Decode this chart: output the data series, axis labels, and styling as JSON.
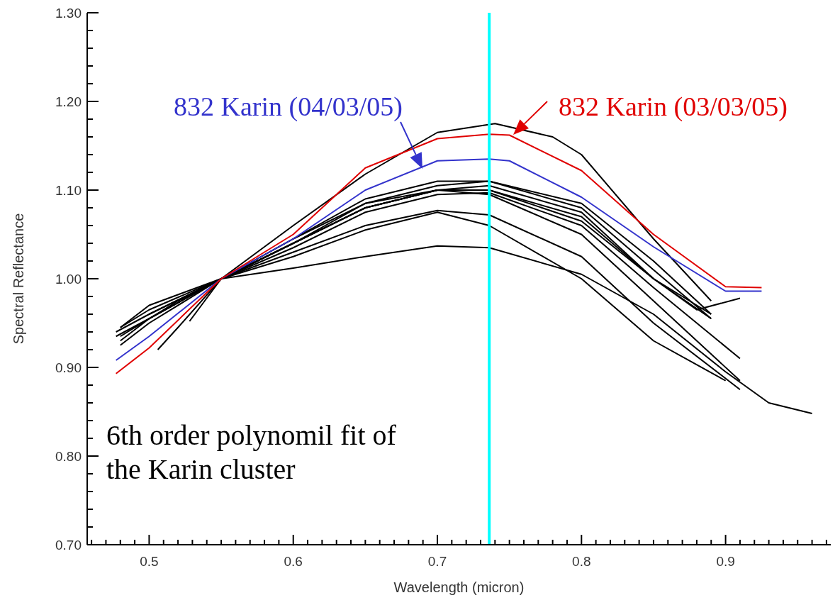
{
  "chart_data": {
    "type": "line",
    "xlabel": "Wavelength (micron)",
    "ylabel": "Spectral Reflectance",
    "xlim": [
      0.457,
      0.973
    ],
    "ylim": [
      0.7,
      1.3
    ],
    "xticks": [
      {
        "value": 0.46,
        "label": null
      },
      {
        "value": 0.47,
        "label": null
      },
      {
        "value": 0.48,
        "label": null
      },
      {
        "value": 0.49,
        "label": null
      },
      0.5,
      {
        "value": 0.51,
        "label": null
      },
      {
        "value": 0.52,
        "label": null
      },
      {
        "value": 0.53,
        "label": null
      },
      {
        "value": 0.54,
        "label": null
      },
      {
        "value": 0.55,
        "label": null
      },
      {
        "value": 0.56,
        "label": null
      },
      {
        "value": 0.57,
        "label": null
      },
      {
        "value": 0.58,
        "label": null
      },
      {
        "value": 0.59,
        "label": null
      },
      0.6,
      {
        "value": 0.61,
        "label": null
      },
      {
        "value": 0.62,
        "label": null
      },
      {
        "value": 0.63,
        "label": null
      },
      {
        "value": 0.64,
        "label": null
      },
      {
        "value": 0.65,
        "label": null
      },
      {
        "value": 0.66,
        "label": null
      },
      {
        "value": 0.67,
        "label": null
      },
      {
        "value": 0.68,
        "label": null
      },
      {
        "value": 0.69,
        "label": null
      },
      0.7,
      {
        "value": 0.71,
        "label": null
      },
      {
        "value": 0.72,
        "label": null
      },
      {
        "value": 0.73,
        "label": null
      },
      {
        "value": 0.74,
        "label": null
      },
      {
        "value": 0.75,
        "label": null
      },
      {
        "value": 0.76,
        "label": null
      },
      {
        "value": 0.77,
        "label": null
      },
      {
        "value": 0.78,
        "label": null
      },
      {
        "value": 0.79,
        "label": null
      },
      0.8,
      {
        "value": 0.81,
        "label": null
      },
      {
        "value": 0.82,
        "label": null
      },
      {
        "value": 0.83,
        "label": null
      },
      {
        "value": 0.84,
        "label": null
      },
      {
        "value": 0.85,
        "label": null
      },
      {
        "value": 0.86,
        "label": null
      },
      {
        "value": 0.87,
        "label": null
      },
      {
        "value": 0.88,
        "label": null
      },
      {
        "value": 0.89,
        "label": null
      },
      0.9,
      {
        "value": 0.91,
        "label": null
      },
      {
        "value": 0.92,
        "label": null
      },
      {
        "value": 0.93,
        "label": null
      },
      {
        "value": 0.94,
        "label": null
      },
      {
        "value": 0.95,
        "label": null
      },
      {
        "value": 0.96,
        "label": null
      },
      {
        "value": 0.97,
        "label": null
      }
    ],
    "yticks": [
      {
        "value": 0.7,
        "label": "0.70"
      },
      {
        "value": 0.72,
        "label": null
      },
      {
        "value": 0.74,
        "label": null
      },
      {
        "value": 0.76,
        "label": null
      },
      {
        "value": 0.78,
        "label": null
      },
      {
        "value": 0.8,
        "label": "0.80"
      },
      {
        "value": 0.82,
        "label": null
      },
      {
        "value": 0.84,
        "label": null
      },
      {
        "value": 0.86,
        "label": null
      },
      {
        "value": 0.88,
        "label": null
      },
      {
        "value": 0.9,
        "label": "0.90"
      },
      {
        "value": 0.92,
        "label": null
      },
      {
        "value": 0.94,
        "label": null
      },
      {
        "value": 0.96,
        "label": null
      },
      {
        "value": 0.98,
        "label": null
      },
      {
        "value": 1.0,
        "label": "1.00"
      },
      {
        "value": 1.02,
        "label": null
      },
      {
        "value": 1.04,
        "label": null
      },
      {
        "value": 1.06,
        "label": null
      },
      {
        "value": 1.08,
        "label": null
      },
      {
        "value": 1.1,
        "label": "1.10"
      },
      {
        "value": 1.12,
        "label": null
      },
      {
        "value": 1.14,
        "label": null
      },
      {
        "value": 1.16,
        "label": null
      },
      {
        "value": 1.18,
        "label": null
      },
      {
        "value": 1.2,
        "label": "1.20"
      },
      {
        "value": 1.22,
        "label": null
      },
      {
        "value": 1.24,
        "label": null
      },
      {
        "value": 1.26,
        "label": null
      },
      {
        "value": 1.28,
        "label": null
      },
      {
        "value": 1.3,
        "label": "1.30"
      }
    ],
    "grid": false,
    "marker": "none",
    "line_style": "solid",
    "ref_lines": [
      {
        "axis": "x",
        "value": 0.736,
        "color": "#00ffff"
      }
    ],
    "annotations": [
      "6th order polynomil fit of the Karin cluster"
    ],
    "series": [
      {
        "color": "#000000",
        "x": [
          0.49,
          0.5,
          0.52,
          0.55,
          0.6,
          0.65,
          0.7,
          0.74,
          0.78,
          0.8,
          0.85,
          0.89
        ],
        "values": [
          0.945,
          0.955,
          0.975,
          1.0,
          1.06,
          1.118,
          1.165,
          1.175,
          1.16,
          1.14,
          1.045,
          0.975
        ]
      },
      {
        "color": "#000000",
        "x": [
          0.477,
          0.5,
          0.55,
          0.6,
          0.65,
          0.7,
          0.736,
          0.8,
          0.85,
          0.89
        ],
        "values": [
          0.94,
          0.96,
          1.0,
          1.04,
          1.085,
          1.105,
          1.11,
          1.085,
          1.02,
          0.96
        ]
      },
      {
        "color": "#000000",
        "x": [
          0.477,
          0.5,
          0.55,
          0.6,
          0.65,
          0.7,
          0.736,
          0.8,
          0.85,
          0.89
        ],
        "values": [
          0.935,
          0.955,
          1.0,
          1.04,
          1.08,
          1.1,
          1.1,
          1.07,
          1.0,
          0.955
        ]
      },
      {
        "color": "#000000",
        "x": [
          0.48,
          0.5,
          0.55,
          0.6,
          0.65,
          0.7,
          0.736,
          0.8,
          0.85,
          0.91
        ],
        "values": [
          0.93,
          0.955,
          1.0,
          1.035,
          1.075,
          1.095,
          1.097,
          1.06,
          0.99,
          0.91
        ]
      },
      {
        "color": "#000000",
        "x": [
          0.48,
          0.5,
          0.55,
          0.6,
          0.65,
          0.7,
          0.736,
          0.8,
          0.85,
          0.91
        ],
        "values": [
          0.945,
          0.965,
          1.0,
          1.04,
          1.08,
          1.1,
          1.095,
          1.05,
          0.975,
          0.885
        ]
      },
      {
        "color": "#000000",
        "x": [
          0.48,
          0.5,
          0.55,
          0.6,
          0.65,
          0.7,
          0.736,
          0.8,
          0.85,
          0.91
        ],
        "values": [
          0.925,
          0.95,
          1.0,
          1.03,
          1.06,
          1.077,
          1.072,
          1.025,
          0.95,
          0.875
        ]
      },
      {
        "color": "#000000",
        "x": [
          0.48,
          0.5,
          0.55,
          0.6,
          0.65,
          0.7,
          0.736,
          0.8,
          0.85,
          0.9
        ],
        "values": [
          0.935,
          0.955,
          1.0,
          1.025,
          1.055,
          1.075,
          1.06,
          1.0,
          0.93,
          0.885
        ]
      },
      {
        "color": "#000000",
        "x": [
          0.48,
          0.5,
          0.55,
          0.6,
          0.65,
          0.7,
          0.736,
          0.8,
          0.85,
          0.9,
          0.93,
          0.96
        ],
        "values": [
          0.945,
          0.97,
          1.0,
          1.012,
          1.025,
          1.037,
          1.035,
          1.005,
          0.96,
          0.895,
          0.86,
          0.848
        ]
      },
      {
        "color": "#000000",
        "x": [
          0.5,
          0.55,
          0.6,
          0.65,
          0.7,
          0.736,
          0.8,
          0.85,
          0.88,
          0.91
        ],
        "values": [
          0.96,
          1.0,
          1.04,
          1.08,
          1.1,
          1.105,
          1.075,
          1.0,
          0.965,
          0.978
        ]
      },
      {
        "color": "#000000",
        "x": [
          0.506,
          0.52,
          0.55,
          0.6,
          0.65,
          0.7,
          0.736,
          0.8,
          0.85,
          0.89
        ],
        "values": [
          0.92,
          0.945,
          1.0,
          1.045,
          1.09,
          1.11,
          1.11,
          1.08,
          1.01,
          0.955
        ]
      },
      {
        "color": "#000000",
        "x": [
          0.528,
          0.55,
          0.6,
          0.65,
          0.7,
          0.736,
          0.8,
          0.85,
          0.89
        ],
        "values": [
          0.952,
          1.0,
          1.045,
          1.085,
          1.1,
          1.1,
          1.065,
          1.0,
          0.96
        ]
      },
      {
        "name": "832 Karin (04/03/05)",
        "color": "#3333cc",
        "x": [
          0.477,
          0.5,
          0.55,
          0.6,
          0.65,
          0.7,
          0.736,
          0.75,
          0.8,
          0.85,
          0.9,
          0.925
        ],
        "values": [
          0.908,
          0.935,
          1.0,
          1.045,
          1.1,
          1.133,
          1.135,
          1.133,
          1.092,
          1.036,
          0.986,
          0.986
        ]
      },
      {
        "name": "832 Karin (03/03/05)",
        "color": "#e00000",
        "x": [
          0.477,
          0.5,
          0.55,
          0.6,
          0.65,
          0.7,
          0.736,
          0.75,
          0.8,
          0.85,
          0.9,
          0.925
        ],
        "values": [
          0.893,
          0.922,
          1.0,
          1.05,
          1.125,
          1.158,
          1.163,
          1.162,
          1.122,
          1.05,
          0.991,
          0.99
        ]
      }
    ]
  }
}
